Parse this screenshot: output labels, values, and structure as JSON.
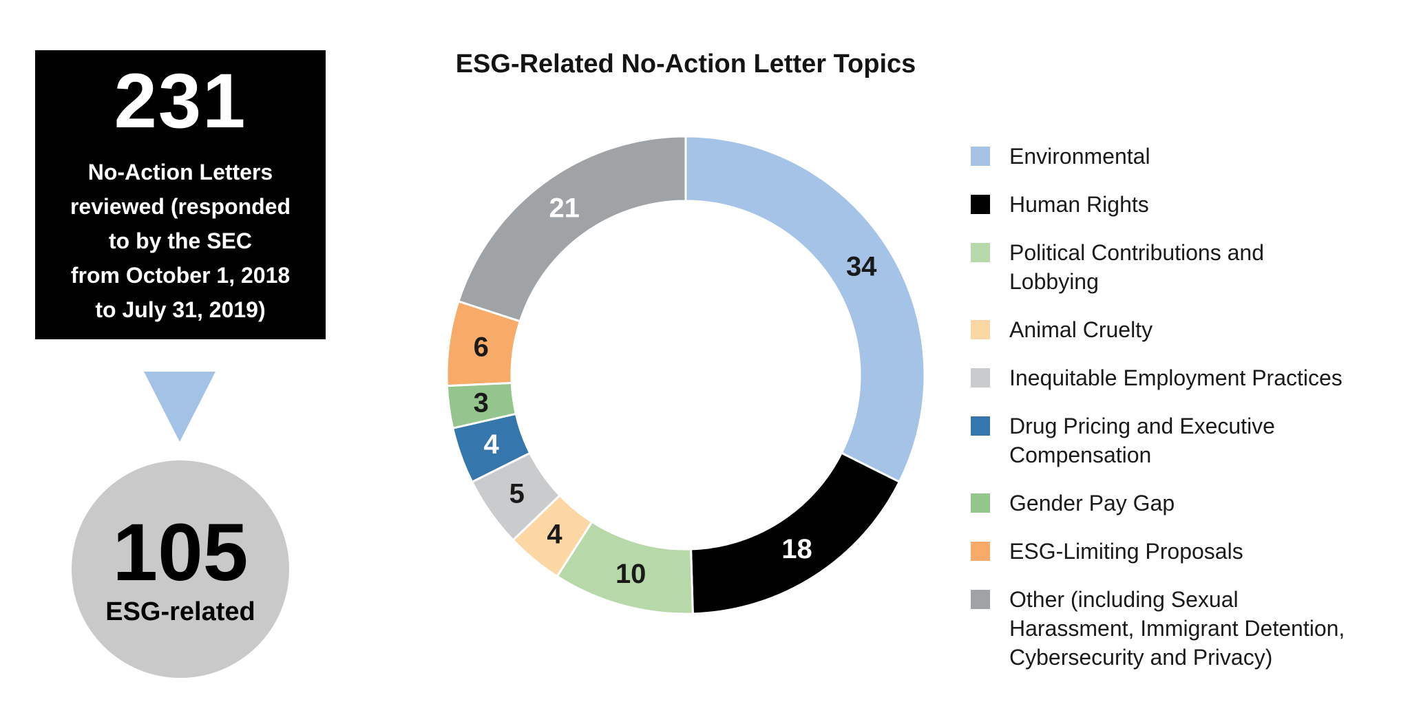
{
  "infographic": {
    "total_box": {
      "number": "231",
      "lines": [
        "No-Action Letters",
        "reviewed (responded",
        "to by the SEC",
        "from October 1, 2018",
        "to July 31, 2019)"
      ],
      "bg_color": "#000000",
      "text_color": "#ffffff"
    },
    "arrow": {
      "direction": "down",
      "color": "#a4c2e5"
    },
    "esg_circle": {
      "number": "105",
      "label": "ESG-related",
      "bg_color": "#c9c9c9",
      "text_color": "#000000"
    }
  },
  "chart_data": {
    "type": "pie",
    "variant": "donut",
    "title": "ESG-Related No-Action Letter Topics",
    "total": 105,
    "start_angle_deg": 0,
    "direction": "clockwise",
    "inner_radius_ratio": 0.73,
    "legend_position": "right",
    "segments": [
      {
        "label": "Environmental",
        "value": 34,
        "color": "#a4c3e7",
        "value_label_color": "#1a1a1a"
      },
      {
        "label": "Human Rights",
        "value": 18,
        "color": "#000000",
        "value_label_color": "#ffffff"
      },
      {
        "label": "Political Contributions and Lobbying",
        "value": 10,
        "color": "#b7d8a9",
        "value_label_color": "#1a1a1a"
      },
      {
        "label": "Animal Cruelty",
        "value": 4,
        "color": "#fcd7a3",
        "value_label_color": "#1a1a1a"
      },
      {
        "label": "Inequitable Employment Practices",
        "value": 5,
        "color": "#cacbcd",
        "value_label_color": "#1a1a1a"
      },
      {
        "label": "Drug Pricing and Executive Compensation",
        "value": 4,
        "color": "#3576ad",
        "value_label_color": "#ffffff"
      },
      {
        "label": "Gender Pay Gap",
        "value": 3,
        "color": "#94c58c",
        "value_label_color": "#1a1a1a"
      },
      {
        "label": "ESG-Limiting Proposals",
        "value": 6,
        "color": "#f8ab68",
        "value_label_color": "#1a1a1a"
      },
      {
        "label": "Other (including Sexual Harassment, Immigrant Detention, Cybersecurity and Privacy)",
        "value": 21,
        "color": "#9fa3a6",
        "value_label_color": "#ffffff"
      }
    ]
  },
  "legend": {
    "items": [
      {
        "color": "#a4c3e7",
        "lines": [
          "Environmental"
        ]
      },
      {
        "color": "#000000",
        "lines": [
          "Human Rights"
        ]
      },
      {
        "color": "#b7d8a9",
        "lines": [
          "Political Contributions and",
          "Lobbying"
        ]
      },
      {
        "color": "#fcd7a3",
        "lines": [
          "Animal Cruelty"
        ]
      },
      {
        "color": "#cacbcd",
        "lines": [
          "Inequitable Employment Practices"
        ]
      },
      {
        "color": "#3576ad",
        "lines": [
          "Drug Pricing and Executive",
          "Compensation"
        ]
      },
      {
        "color": "#94c58c",
        "lines": [
          "Gender Pay Gap"
        ]
      },
      {
        "color": "#f8ab68",
        "lines": [
          "ESG-Limiting Proposals"
        ]
      },
      {
        "color": "#9fa3a6",
        "lines": [
          "Other (including Sexual",
          "Harassment, Immigrant Detention,",
          "Cybersecurity and Privacy)"
        ]
      }
    ]
  }
}
